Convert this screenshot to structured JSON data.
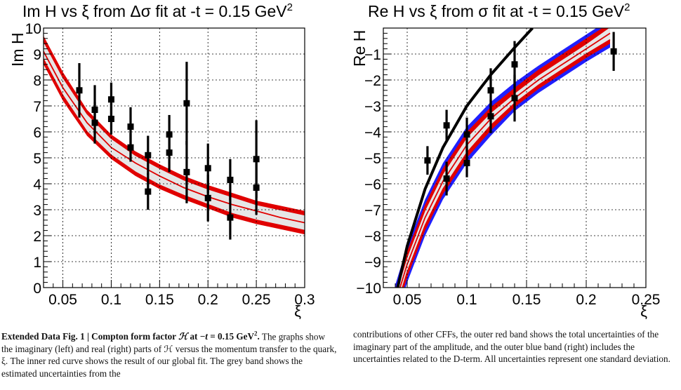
{
  "chart_data": [
    {
      "type": "scatter",
      "title_text": "Im H vs ξ from Δσ fit at -t = 0.15 GeV",
      "title_sup": "2",
      "xlabel": "ξ",
      "ylabel": "Im H",
      "xlim": [
        0.03,
        0.3
      ],
      "ylim": [
        0,
        10
      ],
      "x_ticks": [
        "0.05",
        "0.1",
        "0.15",
        "0.2",
        "0.25",
        "0.3"
      ],
      "x_tick_values": [
        0.05,
        0.1,
        0.15,
        0.2,
        0.25,
        0.3
      ],
      "y_ticks": [
        "0",
        "1",
        "2",
        "3",
        "4",
        "5",
        "6",
        "7",
        "8",
        "9",
        "10"
      ],
      "y_tick_values": [
        0,
        1,
        2,
        3,
        4,
        5,
        6,
        7,
        8,
        9,
        10
      ],
      "grid": true,
      "colors": {
        "fit": "#e00000",
        "band_fill": "#e6e6e6",
        "points": "#000000"
      },
      "fit_curve": {
        "x": [
          0.03,
          0.05,
          0.075,
          0.1,
          0.125,
          0.15,
          0.175,
          0.2,
          0.225,
          0.25,
          0.275,
          0.3
        ],
        "center": [
          9.1,
          7.7,
          6.35,
          5.4,
          4.8,
          4.3,
          3.85,
          3.5,
          3.2,
          2.95,
          2.7,
          2.5
        ],
        "inner_lo": [
          8.8,
          7.4,
          6.0,
          5.1,
          4.45,
          3.95,
          3.55,
          3.2,
          2.85,
          2.6,
          2.4,
          2.2
        ],
        "inner_hi": [
          9.5,
          8.1,
          6.7,
          5.75,
          5.1,
          4.6,
          4.15,
          3.8,
          3.5,
          3.2,
          3.0,
          2.8
        ],
        "outer_lo": [
          8.6,
          7.2,
          5.85,
          4.95,
          4.3,
          3.8,
          3.4,
          3.05,
          2.7,
          2.45,
          2.25,
          2.05
        ],
        "outer_hi": [
          9.7,
          8.3,
          6.85,
          5.9,
          5.25,
          4.75,
          4.3,
          3.95,
          3.65,
          3.35,
          3.15,
          2.95
        ]
      },
      "points": [
        {
          "x": 0.067,
          "y": 7.6,
          "err": 1.05
        },
        {
          "x": 0.083,
          "y": 6.85,
          "err": 0.95
        },
        {
          "x": 0.083,
          "y": 6.35,
          "err": 0.8
        },
        {
          "x": 0.1,
          "y": 7.25,
          "err": 0.65
        },
        {
          "x": 0.1,
          "y": 6.5,
          "err": 0.6
        },
        {
          "x": 0.12,
          "y": 6.2,
          "err": 0.75
        },
        {
          "x": 0.12,
          "y": 5.4,
          "err": 0.55
        },
        {
          "x": 0.138,
          "y": 5.1,
          "err": 0.75
        },
        {
          "x": 0.138,
          "y": 3.7,
          "err": 0.7
        },
        {
          "x": 0.16,
          "y": 5.9,
          "err": 0.75
        },
        {
          "x": 0.16,
          "y": 5.2,
          "err": 0.75
        },
        {
          "x": 0.178,
          "y": 7.1,
          "err": 1.6
        },
        {
          "x": 0.178,
          "y": 4.45,
          "err": 1.2
        },
        {
          "x": 0.2,
          "y": 4.6,
          "err": 0.95
        },
        {
          "x": 0.2,
          "y": 3.45,
          "err": 0.9
        },
        {
          "x": 0.223,
          "y": 4.15,
          "err": 0.8
        },
        {
          "x": 0.223,
          "y": 2.7,
          "err": 0.85
        },
        {
          "x": 0.25,
          "y": 4.95,
          "err": 1.5
        },
        {
          "x": 0.25,
          "y": 3.85,
          "err": 1.05
        }
      ]
    },
    {
      "type": "scatter",
      "title_text": "Re H vs ξ from σ fit at -t = 0.15 GeV",
      "title_sup": "2",
      "xlabel": "ξ",
      "ylabel": "Re H",
      "xlim": [
        0.03,
        0.25
      ],
      "ylim": [
        -10,
        0
      ],
      "x_ticks": [
        "0.05",
        "0.1",
        "0.15",
        "0.2",
        "0.25"
      ],
      "x_tick_values": [
        0.05,
        0.1,
        0.15,
        0.2,
        0.25
      ],
      "y_ticks": [
        "−1",
        "−2",
        "−3",
        "−4",
        "−5",
        "−6",
        "−7",
        "−8",
        "−9",
        "−10"
      ],
      "y_tick_values": [
        -1,
        -2,
        -3,
        -4,
        -5,
        -6,
        -7,
        -8,
        -9,
        -10
      ],
      "grid": true,
      "colors": {
        "fit": "#e00000",
        "band_fill": "#e6e6e6",
        "dterm": "#1f1fff",
        "black_curve": "#000000",
        "points": "#000000"
      },
      "fit_curve": {
        "x": [
          0.04,
          0.05,
          0.065,
          0.08,
          0.1,
          0.12,
          0.14,
          0.16,
          0.18,
          0.2,
          0.22
        ],
        "center": [
          -10.6,
          -9.1,
          -7.3,
          -5.9,
          -4.5,
          -3.5,
          -2.7,
          -2.0,
          -1.4,
          -0.8,
          -0.2
        ],
        "inner_lo": [
          -10.9,
          -9.4,
          -7.6,
          -6.2,
          -4.8,
          -3.75,
          -2.9,
          -2.2,
          -1.6,
          -1.0,
          -0.45
        ],
        "inner_hi": [
          -10.3,
          -8.8,
          -7.0,
          -5.6,
          -4.2,
          -3.25,
          -2.5,
          -1.8,
          -1.2,
          -0.6,
          0.05
        ],
        "outer_lo": [
          -11.1,
          -9.6,
          -7.8,
          -6.4,
          -5.0,
          -3.95,
          -3.05,
          -2.35,
          -1.75,
          -1.15,
          -0.6
        ],
        "outer_hi": [
          -10.1,
          -8.6,
          -6.8,
          -5.4,
          -4.0,
          -3.05,
          -2.3,
          -1.6,
          -1.0,
          -0.4,
          0.2
        ],
        "dterm_lo": [
          -11.3,
          -9.8,
          -8.0,
          -6.6,
          -5.2,
          -4.15,
          -3.2,
          -2.5,
          -1.9,
          -1.3,
          -0.75
        ],
        "dterm_hi": [
          -9.9,
          -8.4,
          -6.6,
          -5.2,
          -3.8,
          -2.85,
          -2.1,
          -1.45,
          -0.85,
          -0.25,
          0.35
        ]
      },
      "black_curve": {
        "x": [
          0.04,
          0.05,
          0.065,
          0.08,
          0.1,
          0.12,
          0.14,
          0.155
        ],
        "y": [
          -10.4,
          -8.4,
          -6.2,
          -4.6,
          -3.0,
          -1.8,
          -0.75,
          0.0
        ]
      },
      "points": [
        {
          "x": 0.067,
          "y": -5.1,
          "err": 0.55
        },
        {
          "x": 0.083,
          "y": -3.75,
          "err": 0.6
        },
        {
          "x": 0.083,
          "y": -5.8,
          "err": 0.65
        },
        {
          "x": 0.1,
          "y": -4.1,
          "err": 0.65
        },
        {
          "x": 0.1,
          "y": -5.2,
          "err": 0.55
        },
        {
          "x": 0.12,
          "y": -2.4,
          "err": 0.85
        },
        {
          "x": 0.12,
          "y": -3.4,
          "err": 0.65
        },
        {
          "x": 0.14,
          "y": -1.4,
          "err": 0.9
        },
        {
          "x": 0.14,
          "y": -2.7,
          "err": 0.9
        },
        {
          "x": 0.223,
          "y": -0.9,
          "err": 0.75
        }
      ]
    }
  ],
  "caption": {
    "label": "Extended Data Fig. 1 | Compton form factor ",
    "label_h": "ℋ",
    "label_mid": " at −",
    "label_t": "t",
    "label_val": " = 0.15 GeV",
    "label_sup": "2",
    "label_end": ".",
    "left_text": " The graphs show the imaginary (left) and real (right) parts of ℋ versus the momentum transfer to the quark, ξ. The inner red curve shows the result of our global fit. The grey band shows the estimated uncertainties from the",
    "right_text": "contributions of other CFFs, the outer red band shows the total uncertainties of the imaginary part of the amplitude, and the outer blue band (right) includes the uncertainties related to the D-term. All uncertainties represent one standard deviation."
  }
}
